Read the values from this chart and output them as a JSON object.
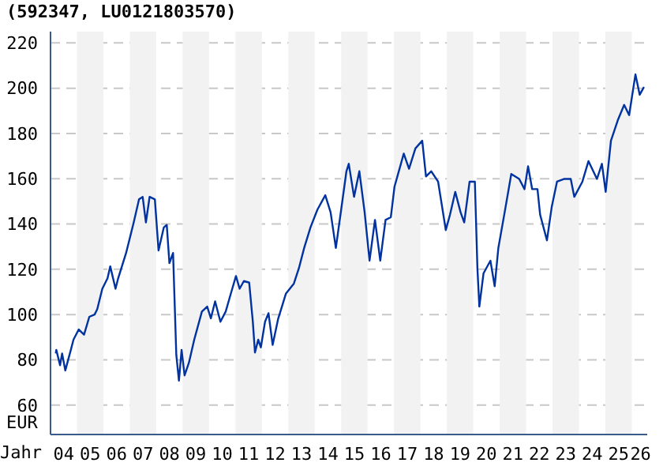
{
  "chart_data": {
    "type": "line",
    "title": "(592347, LU0121803570)",
    "xlabel": "Jahr",
    "ylabel": "EUR",
    "x": [
      "2004-03-13",
      "2004-03-20",
      "2004-05-11",
      "2004-06-09",
      "2004-07-23",
      "2004-10-08",
      "2004-11-14",
      "2005-01-26",
      "2005-04-08",
      "2005-06-20",
      "2005-09-02",
      "2005-10-08",
      "2005-12-17",
      "2006-02-28",
      "2006-04-05",
      "2006-06-17",
      "2006-07-23",
      "2006-11-11",
      "2007-02-25",
      "2007-05-07",
      "2007-06-27",
      "2007-08-11",
      "2007-10-01",
      "2007-12-13",
      "2008-02-03",
      "2008-04-15",
      "2008-05-25",
      "2008-07-01",
      "2008-08-21",
      "2008-10-05",
      "2008-11-11",
      "2008-12-17",
      "2009-01-28",
      "2009-03-27",
      "2009-06-09",
      "2009-09-24",
      "2009-12-06",
      "2010-01-26",
      "2010-03-24",
      "2010-06-06",
      "2010-08-18",
      "2010-10-28",
      "2011-01-08",
      "2011-02-28",
      "2011-04-26",
      "2011-07-08",
      "2011-08-28",
      "2011-09-27",
      "2011-11-11",
      "2011-12-17",
      "2012-02-14",
      "2012-04-01",
      "2012-05-28",
      "2012-08-11",
      "2012-11-28",
      "2013-03-17",
      "2013-05-25",
      "2013-08-07",
      "2013-11-03",
      "2014-02-07",
      "2014-05-25",
      "2014-08-07",
      "2014-10-19",
      "2015-01-01",
      "2015-03-13",
      "2015-04-15",
      "2015-06-27",
      "2015-09-09",
      "2015-11-21",
      "2016-01-28",
      "2016-04-12",
      "2016-06-24",
      "2016-09-06",
      "2016-11-18",
      "2017-01-08",
      "2017-05-14",
      "2017-07-26",
      "2017-10-23",
      "2018-01-26",
      "2018-03-17",
      "2018-05-28",
      "2018-09-02",
      "2018-12-17",
      "2019-02-14",
      "2019-04-26",
      "2019-07-08",
      "2019-08-28",
      "2019-11-11",
      "2020-01-23",
      "2020-02-28",
      "2020-03-24",
      "2020-05-21",
      "2020-08-25",
      "2020-10-23",
      "2020-12-13",
      "2021-03-09",
      "2021-06-09",
      "2021-09-27",
      "2021-12-09",
      "2022-01-28",
      "2022-03-24",
      "2022-06-06",
      "2022-07-12",
      "2022-10-15",
      "2022-12-20",
      "2023-03-02",
      "2023-06-06",
      "2023-09-09",
      "2023-10-28",
      "2024-02-18",
      "2024-05-11",
      "2024-09-06",
      "2024-11-14",
      "2025-01-05",
      "2025-03-17",
      "2025-06-20",
      "2025-09-17",
      "2025-11-25",
      "2026-02-21",
      "2026-04-19",
      "2026-06-17"
    ],
    "series": [
      {
        "color": "#0033a0",
        "values": [
          82.8,
          84.4,
          77.6,
          82.8,
          75.3,
          84.4,
          88.9,
          93.4,
          91.1,
          99,
          100,
          102.4,
          111.4,
          116,
          121.3,
          111.4,
          116,
          127.2,
          140.7,
          150.9,
          152,
          140.7,
          152,
          150.9,
          128.3,
          138.5,
          139.6,
          122.7,
          127.2,
          82.1,
          70.8,
          84.4,
          73.1,
          78.7,
          88.9,
          101.3,
          103.5,
          98.3,
          105.8,
          96.8,
          101.3,
          109.2,
          117,
          111.4,
          114.8,
          114.1,
          96.8,
          83.2,
          88.9,
          85.5,
          96.8,
          100.6,
          86.6,
          97.9,
          109.2,
          113.7,
          120.4,
          129.4,
          138.5,
          146.3,
          152.7,
          145.2,
          129.4,
          146.3,
          163.3,
          166.6,
          152,
          163.3,
          145.2,
          123.8,
          141.8,
          123.8,
          141.8,
          143,
          156.5,
          171.1,
          164.4,
          173.4,
          176.8,
          161,
          163.3,
          158.7,
          137.3,
          144.1,
          154.2,
          145.2,
          140.7,
          158.7,
          158.7,
          120.4,
          103.5,
          118.2,
          123.8,
          112.5,
          129.4,
          145.2,
          162.1,
          159.9,
          155.4,
          165.5,
          155.4,
          155.4,
          144.1,
          132.8,
          147.5,
          158.7,
          159.9,
          159.9,
          152,
          158.7,
          167.8,
          159.9,
          166.6,
          154.2,
          176.8,
          185.8,
          192.6,
          188.1,
          206.1,
          197.1,
          200.5
        ]
      }
    ],
    "xlim": [
      "2004-01",
      "2026-08"
    ],
    "xticks": [
      {
        "value": "2004-07",
        "label": "04"
      },
      {
        "value": "2005-07",
        "label": "05"
      },
      {
        "value": "2006-07",
        "label": "06"
      },
      {
        "value": "2007-07",
        "label": "07"
      },
      {
        "value": "2008-07",
        "label": "08"
      },
      {
        "value": "2009-07",
        "label": "09"
      },
      {
        "value": "2010-07",
        "label": "10"
      },
      {
        "value": "2011-07",
        "label": "11"
      },
      {
        "value": "2012-07",
        "label": "12"
      },
      {
        "value": "2013-07",
        "label": "13"
      },
      {
        "value": "2014-07",
        "label": "14"
      },
      {
        "value": "2015-07",
        "label": "15"
      },
      {
        "value": "2016-07",
        "label": "16"
      },
      {
        "value": "2017-07",
        "label": "17"
      },
      {
        "value": "2018-07",
        "label": "18"
      },
      {
        "value": "2019-07",
        "label": "19"
      },
      {
        "value": "2020-07",
        "label": "20"
      },
      {
        "value": "2021-07",
        "label": "21"
      },
      {
        "value": "2022-07",
        "label": "22"
      },
      {
        "value": "2023-07",
        "label": "23"
      },
      {
        "value": "2024-07",
        "label": "24"
      },
      {
        "value": "2025-07",
        "label": "25"
      },
      {
        "value": "2026-05",
        "label": "26"
      }
    ],
    "ylim": [
      47,
      225
    ],
    "yticks": [
      60,
      80,
      100,
      120,
      140,
      160,
      180,
      200,
      220
    ],
    "bands": [
      {
        "axis": "x",
        "from": "2005",
        "to": "2006",
        "color": "#f2f2f2"
      },
      {
        "axis": "x",
        "from": "2007",
        "to": "2008",
        "color": "#f2f2f2"
      },
      {
        "axis": "x",
        "from": "2009",
        "to": "2010",
        "color": "#f2f2f2"
      },
      {
        "axis": "x",
        "from": "2011",
        "to": "2012",
        "color": "#f2f2f2"
      },
      {
        "axis": "x",
        "from": "2013",
        "to": "2014",
        "color": "#f2f2f2"
      },
      {
        "axis": "x",
        "from": "2015",
        "to": "2016",
        "color": "#f2f2f2"
      },
      {
        "axis": "x",
        "from": "2017",
        "to": "2018",
        "color": "#f2f2f2"
      },
      {
        "axis": "x",
        "from": "2019",
        "to": "2020",
        "color": "#f2f2f2"
      },
      {
        "axis": "x",
        "from": "2021",
        "to": "2022",
        "color": "#f2f2f2"
      },
      {
        "axis": "x",
        "from": "2023",
        "to": "2024",
        "color": "#f2f2f2"
      },
      {
        "axis": "x",
        "from": "2025",
        "to": "2026",
        "color": "#f2f2f2"
      }
    ],
    "grid": "y",
    "legend": false,
    "marker": "none",
    "line_style": "solid"
  }
}
